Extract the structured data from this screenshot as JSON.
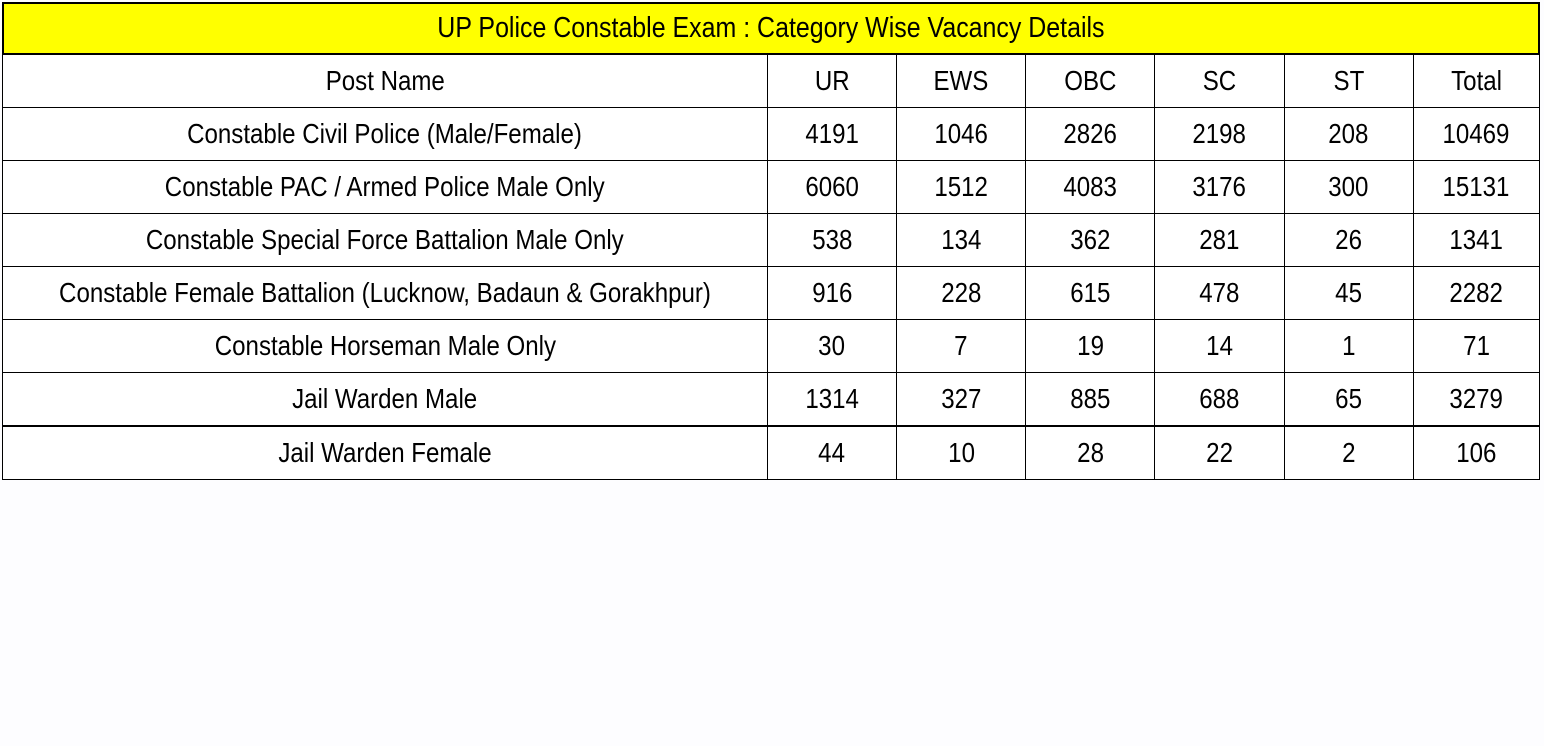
{
  "title": "UP Police Constable Exam : Category Wise Vacancy Details",
  "columns": [
    "Post Name",
    "UR",
    "EWS",
    "OBC",
    "SC",
    "ST",
    "Total"
  ],
  "rows": [
    [
      "Constable Civil Police (Male/Female)",
      "4191",
      "1046",
      "2826",
      "2198",
      "208",
      "10469"
    ],
    [
      "Constable PAC / Armed Police Male Only",
      "6060",
      "1512",
      "4083",
      "3176",
      "300",
      "15131"
    ],
    [
      "Constable Special Force Battalion Male Only",
      "538",
      "134",
      "362",
      "281",
      "26",
      "1341"
    ],
    [
      "Constable Female Battalion (Lucknow, Badaun & Gorakhpur)",
      "916",
      "228",
      "615",
      "478",
      "45",
      "2282"
    ],
    [
      "Constable Horseman Male Only",
      "30",
      "7",
      "19",
      "14",
      "1",
      "71"
    ],
    [
      "Jail Warden Male",
      "1314",
      "327",
      "885",
      "688",
      "65",
      "3279"
    ],
    [
      "Jail Warden Female",
      "44",
      "10",
      "28",
      "22",
      "2",
      "106"
    ]
  ],
  "colors": {
    "title_background": "#ffff00",
    "border": "#000000",
    "page_background": "#fdfdff"
  }
}
